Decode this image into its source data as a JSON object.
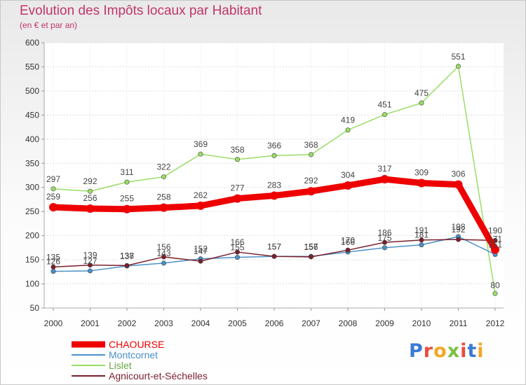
{
  "header": {
    "title": "Evolution des Impôts locaux par Habitant",
    "subtitle": "(en € et par an)"
  },
  "logo": {
    "text": "Proxiti"
  },
  "chart_data": {
    "type": "line",
    "title": "Evolution des Impôts locaux par Habitant",
    "subtitle": "(en € et par an)",
    "xlabel": "",
    "ylabel": "",
    "x": [
      "2000",
      "2001",
      "2002",
      "2003",
      "2004",
      "2005",
      "2006",
      "2007",
      "2008",
      "2009",
      "2010",
      "2011",
      "2012"
    ],
    "ylim": [
      50,
      600
    ],
    "yticks": [
      50,
      100,
      150,
      200,
      250,
      300,
      350,
      400,
      450,
      500,
      550,
      600
    ],
    "grid": "horizontal",
    "legend_position": "bottom-left",
    "series": [
      {
        "name": "CHAOURSE",
        "color": "#ee0000",
        "values": [
          259,
          256,
          255,
          258,
          262,
          277,
          283,
          292,
          304,
          317,
          309,
          306,
          171
        ],
        "labels": [
          "259",
          "256",
          "255",
          "258",
          "262",
          "277",
          "283",
          "292",
          "304",
          "317",
          "309",
          "306",
          "171"
        ]
      },
      {
        "name": "Montcornet",
        "color": "#4a90c8",
        "values": [
          126,
          127,
          137,
          143,
          152,
          155,
          157,
          157,
          166,
          175,
          181,
          198,
          161
        ],
        "labels": [
          "126",
          "127",
          "137",
          "143",
          "152",
          "155",
          "157",
          "157",
          "166",
          "175",
          "181",
          "198",
          "161"
        ]
      },
      {
        "name": "Lislet",
        "color": "#99dd66",
        "values": [
          297,
          292,
          311,
          322,
          369,
          358,
          366,
          368,
          419,
          451,
          475,
          551,
          80
        ],
        "labels": [
          "297",
          "292",
          "311",
          "322",
          "369",
          "358",
          "366",
          "368",
          "419",
          "451",
          "475",
          "551",
          "80"
        ]
      },
      {
        "name": "Agnicourt-et-Séchelles",
        "color": "#7a1f2b",
        "values": [
          135,
          139,
          138,
          156,
          147,
          166,
          157,
          156,
          170,
          186,
          191,
          192,
          190
        ],
        "labels": [
          "135",
          "139",
          "138",
          "156",
          "147",
          "166",
          "157",
          "156",
          "170",
          "186",
          "191",
          "192",
          "190"
        ]
      }
    ]
  }
}
